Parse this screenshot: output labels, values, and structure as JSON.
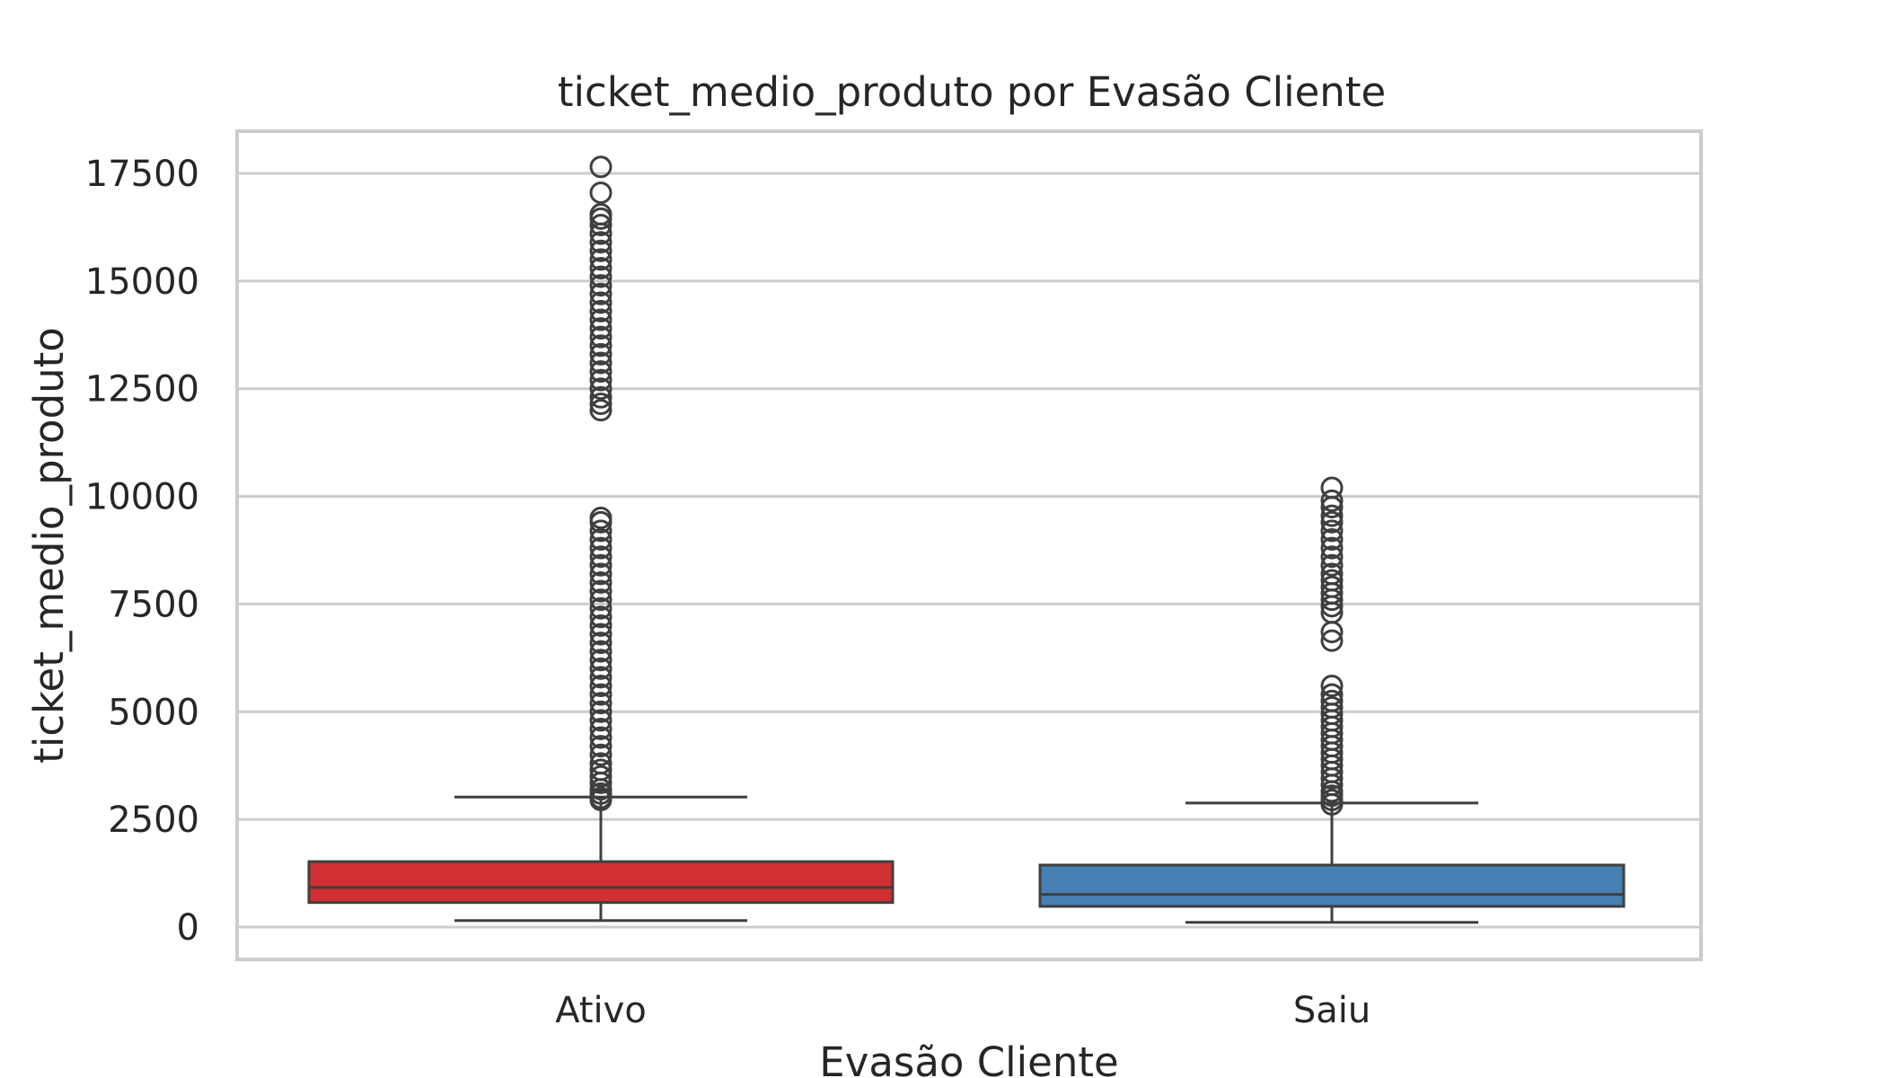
{
  "chart_data": {
    "type": "box",
    "title": "ticket_medio_produto por Evasão Cliente",
    "xlabel": "Evasão Cliente",
    "ylabel": "ticket_medio_produto",
    "ylim": [
      -800,
      18500
    ],
    "yticks": [
      0,
      2500,
      5000,
      7500,
      10000,
      12500,
      15000,
      17500
    ],
    "ytick_labels": [
      "0",
      "2500",
      "5000",
      "7500",
      "10000",
      "12500",
      "15000",
      "17500"
    ],
    "grid": true,
    "categories": [
      "Ativo",
      "Saiu"
    ],
    "series": [
      {
        "category": "Ativo",
        "color": "#d03033",
        "whisker_low": 150,
        "q1": 570,
        "median": 920,
        "q3": 1520,
        "whisker_high": 3020,
        "outliers": [
          2950,
          3000,
          3100,
          3200,
          3350,
          3500,
          3650,
          3800,
          4000,
          4200,
          4400,
          4600,
          4800,
          5000,
          5200,
          5400,
          5600,
          5800,
          6000,
          6200,
          6400,
          6600,
          6800,
          7000,
          7200,
          7400,
          7600,
          7800,
          8000,
          8200,
          8400,
          8600,
          8800,
          9000,
          9200,
          9400,
          9500,
          12000,
          12150,
          12300,
          12500,
          12700,
          12900,
          13100,
          13300,
          13500,
          13700,
          13900,
          14100,
          14300,
          14500,
          14700,
          14900,
          15100,
          15300,
          15500,
          15700,
          15900,
          16100,
          16300,
          16450,
          16550,
          17050,
          17650
        ]
      },
      {
        "category": "Saiu",
        "color": "#4680b3",
        "whisker_low": 110,
        "q1": 480,
        "median": 760,
        "q3": 1440,
        "whisker_high": 2880,
        "outliers": [
          2850,
          2950,
          3050,
          3150,
          3300,
          3450,
          3600,
          3750,
          3900,
          4050,
          4200,
          4350,
          4500,
          4650,
          4800,
          4950,
          5100,
          5250,
          5400,
          5600,
          6650,
          6850,
          7300,
          7450,
          7600,
          7750,
          7900,
          8050,
          8200,
          8400,
          8600,
          8800,
          9000,
          9200,
          9400,
          9550,
          9750,
          9900,
          10200
        ]
      }
    ]
  }
}
